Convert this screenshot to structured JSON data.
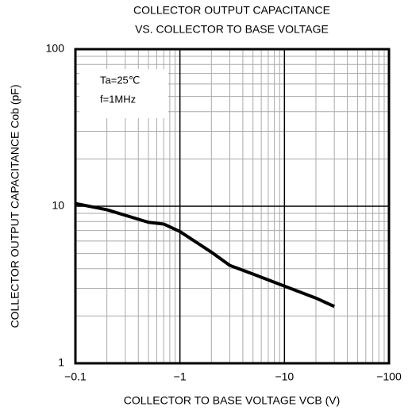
{
  "chart_data": {
    "type": "line",
    "title": [
      "COLLECTOR OUTPUT CAPACITANCE",
      "VS. COLLECTOR TO BASE VOLTAGE"
    ],
    "x_label": "COLLECTOR TO BASE VOLTAGE  VCB (V)",
    "y_label": "COLLECTOR OUTPUT CAPACITANCE  Cob (pF)",
    "annotations": [
      "Ta=25℃",
      "f=1MHz"
    ],
    "xscale": "log",
    "yscale": "log",
    "grid": true,
    "x": [
      -0.1,
      -0.2,
      -0.5,
      -0.7,
      -1,
      -2,
      -3,
      -5,
      -10,
      -20,
      -30
    ],
    "series": [
      {
        "name": "Cob",
        "color": "#000000",
        "values": [
          10.4,
          9.5,
          7.9,
          7.7,
          6.9,
          5.1,
          4.2,
          3.7,
          3.1,
          2.6,
          2.3
        ]
      }
    ],
    "xlim": [
      -0.1,
      -100
    ],
    "xticks": [
      {
        "value": -0.1,
        "label": "−0.1"
      },
      {
        "value": -1,
        "label": "−1"
      },
      {
        "value": -10,
        "label": "−10"
      },
      {
        "value": -100,
        "label": "−100"
      }
    ],
    "ylim": [
      1,
      100
    ],
    "yticks": [
      1,
      10,
      100
    ]
  }
}
